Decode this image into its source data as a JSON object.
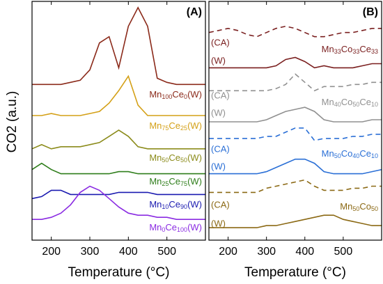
{
  "chart_data": [
    {
      "type": "line",
      "title": "(A)",
      "xlabel": "Temperature (°C)",
      "ylabel": "CO2 (a.u.)",
      "xlim": [
        150,
        600
      ],
      "xticks": [
        200,
        300,
        400,
        500
      ],
      "ylim": [
        0,
        115
      ],
      "x": [
        150,
        175,
        200,
        225,
        250,
        275,
        300,
        325,
        350,
        375,
        400,
        425,
        450,
        475,
        500,
        525,
        550,
        575,
        600
      ],
      "series": [
        {
          "name": "Mn100Ce0(W)",
          "color": "#8b2a1a",
          "values": [
            75,
            75,
            75,
            75,
            76,
            77,
            82,
            95,
            98,
            83,
            103,
            112,
            103,
            78,
            76,
            75,
            75,
            75,
            75
          ]
        },
        {
          "name": "Mn75Ce25(W)",
          "color": "#d4a017",
          "values": [
            60,
            60,
            61,
            60,
            60,
            60,
            61,
            62,
            66,
            72,
            79,
            65,
            60,
            60,
            60,
            60,
            60,
            60,
            60
          ]
        },
        {
          "name": "Mn50Ce50(W)",
          "color": "#8b8b1a",
          "values": [
            44,
            46,
            44,
            45,
            45,
            45,
            46,
            47,
            50,
            53,
            50,
            45,
            44,
            44,
            44,
            44,
            44,
            44,
            44
          ]
        },
        {
          "name": "Mn25Ce75(W)",
          "color": "#2e7d1a",
          "values": [
            34,
            37,
            34,
            32,
            32,
            32,
            32,
            32,
            32,
            33,
            33,
            32,
            32,
            32,
            32,
            32,
            32,
            32,
            32
          ]
        },
        {
          "name": "Mn10Ce90(W)",
          "color": "#1a1ab0",
          "values": [
            20,
            21,
            24,
            24,
            22,
            22,
            22,
            22,
            22,
            23,
            23,
            23,
            23,
            22,
            22,
            22,
            22,
            22,
            22
          ]
        },
        {
          "name": "Mn0Ce100(W)",
          "color": "#8a2be2",
          "values": [
            10,
            10,
            11,
            13,
            17,
            23,
            26,
            24,
            20,
            16,
            13,
            12,
            12,
            11,
            11,
            10,
            10,
            10,
            10
          ]
        }
      ]
    },
    {
      "type": "line",
      "title": "(B)",
      "xlabel": "Temperature (°C)",
      "xlim": [
        150,
        600
      ],
      "xticks": [
        200,
        300,
        400,
        500
      ],
      "ylim": [
        0,
        115
      ],
      "x": [
        150,
        175,
        200,
        225,
        250,
        275,
        300,
        325,
        350,
        375,
        400,
        425,
        450,
        475,
        500,
        525,
        550,
        575,
        600
      ],
      "groups": [
        {
          "label": "Mn33Co33Ce33",
          "color": "#7a1f1f",
          "series": [
            {
              "name": "(CA)",
              "dashed": true,
              "values": [
                100,
                101,
                102,
                101,
                99,
                98,
                100,
                102,
                103,
                102,
                100,
                98,
                98,
                99,
                100,
                100,
                101,
                102,
                102
              ]
            },
            {
              "name": "(W)",
              "dashed": false,
              "values": [
                83,
                83,
                83,
                83,
                83,
                83,
                83,
                84,
                87,
                88,
                86,
                83,
                84,
                83,
                83,
                83,
                84,
                85,
                85
              ]
            }
          ]
        },
        {
          "label": "Mn40Co50Ce10",
          "color": "#909090",
          "series": [
            {
              "name": "(CA)",
              "dashed": true,
              "values": [
                72,
                72,
                72,
                72,
                72,
                72,
                72,
                73,
                75,
                80,
                76,
                72,
                74,
                74,
                74,
                75,
                75,
                76,
                76
              ]
            },
            {
              "name": "(W)",
              "dashed": false,
              "values": [
                57,
                57,
                57,
                57,
                57,
                57,
                58,
                60,
                62,
                63,
                64,
                62,
                58,
                57,
                57,
                57,
                57,
                58,
                58
              ]
            }
          ]
        },
        {
          "label": "Mn50Co40Ce10",
          "color": "#2a6fd6",
          "series": [
            {
              "name": "(CA)",
              "dashed": true,
              "values": [
                49,
                49,
                49,
                49,
                49,
                49,
                50,
                50,
                52,
                54,
                54,
                48,
                49,
                49,
                49,
                50,
                50,
                51,
                51
              ]
            },
            {
              "name": "(W)",
              "dashed": false,
              "values": [
                32,
                32,
                32,
                32,
                32,
                32,
                33,
                35,
                37,
                39,
                39,
                37,
                33,
                32,
                32,
                32,
                32,
                33,
                34
              ]
            }
          ]
        },
        {
          "label": "Mn50Co50",
          "color": "#8b6914",
          "series": [
            {
              "name": "(CA)",
              "dashed": true,
              "values": [
                23,
                23,
                23,
                23,
                23,
                23,
                25,
                26,
                27,
                28,
                29,
                26,
                24,
                24,
                24,
                25,
                25,
                26,
                26
              ]
            },
            {
              "name": "(W)",
              "dashed": false,
              "values": [
                6,
                6,
                6,
                6,
                6,
                6,
                7,
                7,
                8,
                9,
                10,
                11,
                12,
                12,
                10,
                9,
                8,
                7,
                7
              ]
            }
          ]
        }
      ]
    }
  ]
}
